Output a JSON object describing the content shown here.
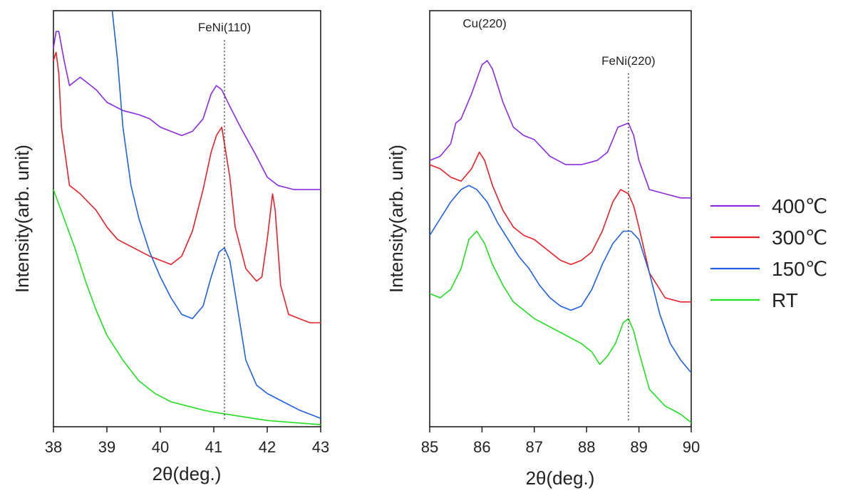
{
  "chart_data": [
    {
      "type": "line",
      "xlabel": "2θ(deg.)",
      "ylabel": "Intensity(arb. unit)",
      "xlim": [
        38,
        43
      ],
      "ylim": [
        0,
        100
      ],
      "y_ticks_shown": false,
      "xticks": [
        "38",
        "39",
        "40",
        "41",
        "42",
        "43"
      ],
      "annotations": [
        {
          "text": "FeNi(110)",
          "x": 41.2,
          "y": 95,
          "reference_line_x": 41.2
        }
      ],
      "series": [
        {
          "name": "400℃",
          "color": "#8a2be2",
          "x": [
            38.0,
            38.05,
            38.1,
            38.2,
            38.3,
            38.5,
            38.8,
            39.0,
            39.3,
            39.6,
            39.8,
            40.0,
            40.2,
            40.4,
            40.6,
            40.8,
            40.95,
            41.05,
            41.15,
            41.3,
            41.5,
            41.8,
            42.0,
            42.2,
            42.5,
            42.8,
            43.0
          ],
          "y": [
            91,
            95,
            95,
            88,
            82,
            84,
            81,
            78,
            76,
            75,
            74,
            72,
            71,
            70,
            71,
            74,
            80,
            82,
            81,
            77,
            72,
            65,
            60,
            58,
            57,
            57,
            57
          ]
        },
        {
          "name": "300℃",
          "color": "#e8202a",
          "x": [
            38.0,
            38.05,
            38.1,
            38.15,
            38.3,
            38.5,
            38.8,
            39.0,
            39.2,
            39.5,
            39.8,
            40.0,
            40.2,
            40.4,
            40.6,
            40.8,
            40.95,
            41.05,
            41.15,
            41.2,
            41.3,
            41.4,
            41.6,
            41.8,
            41.9,
            42.0,
            42.1,
            42.15,
            42.25,
            42.4,
            42.6,
            42.8,
            43.0
          ],
          "y": [
            88,
            90,
            85,
            72,
            58,
            56,
            52,
            48,
            45,
            43,
            41,
            40,
            39,
            41,
            47,
            57,
            66,
            70,
            72,
            68,
            60,
            48,
            38,
            35,
            36,
            45,
            56,
            52,
            34,
            27,
            26,
            25,
            25
          ]
        },
        {
          "name": "150℃",
          "color": "#2060e0",
          "x": [
            39.1,
            39.2,
            39.3,
            39.45,
            39.6,
            39.8,
            40.0,
            40.2,
            40.4,
            40.6,
            40.8,
            40.95,
            41.1,
            41.2,
            41.3,
            41.45,
            41.6,
            41.8,
            42.0,
            42.3,
            42.6,
            43.0
          ],
          "y": [
            100,
            88,
            72,
            58,
            50,
            42,
            36,
            31,
            27,
            26,
            29,
            36,
            42,
            43,
            40,
            28,
            16,
            10,
            8,
            6,
            4,
            2
          ]
        },
        {
          "name": "RT",
          "color": "#22dd22",
          "x": [
            38.0,
            38.2,
            38.4,
            38.6,
            38.8,
            39.0,
            39.3,
            39.6,
            39.9,
            40.2,
            40.5,
            40.8,
            41.0,
            41.5,
            42.0,
            42.5,
            43.0
          ],
          "y": [
            57,
            50,
            43,
            35,
            28,
            22,
            16,
            11,
            8,
            6,
            5,
            4,
            3.5,
            2.5,
            1.5,
            1,
            0.5
          ]
        }
      ]
    },
    {
      "type": "line",
      "xlabel": "2θ(deg.)",
      "ylabel": "Intensity(arb. unit)",
      "xlim": [
        85,
        90
      ],
      "ylim": [
        0,
        100
      ],
      "y_ticks_shown": false,
      "xticks": [
        "85",
        "86",
        "87",
        "88",
        "89",
        "90"
      ],
      "annotations": [
        {
          "text": "Cu(220)",
          "x": 86.05,
          "y": 96
        },
        {
          "text": "FeNi(220)",
          "x": 88.8,
          "y": 87,
          "reference_line_x": 88.8
        }
      ],
      "series": [
        {
          "name": "400℃",
          "color": "#8a2be2",
          "x": [
            85.0,
            85.2,
            85.4,
            85.5,
            85.6,
            85.8,
            86.0,
            86.1,
            86.2,
            86.4,
            86.6,
            86.8,
            87.0,
            87.3,
            87.6,
            87.9,
            88.2,
            88.4,
            88.6,
            88.8,
            88.9,
            89.0,
            89.2,
            89.5,
            89.8,
            90.0
          ],
          "y": [
            64,
            65,
            68,
            73,
            74,
            80,
            87,
            88,
            86,
            78,
            72,
            70,
            69,
            65,
            63,
            63,
            64,
            66,
            72,
            73,
            70,
            64,
            57,
            56,
            55,
            55
          ]
        },
        {
          "name": "300℃",
          "color": "#e8202a",
          "x": [
            85.0,
            85.2,
            85.4,
            85.6,
            85.8,
            85.95,
            86.05,
            86.2,
            86.4,
            86.6,
            86.8,
            87.0,
            87.3,
            87.5,
            87.7,
            87.9,
            88.1,
            88.3,
            88.5,
            88.65,
            88.8,
            88.9,
            89.0,
            89.2,
            89.5,
            89.8,
            90.0
          ],
          "y": [
            63,
            62,
            60,
            59,
            62,
            66,
            64,
            58,
            52,
            48,
            46,
            45,
            42,
            40,
            39,
            40,
            42,
            47,
            54,
            57,
            56,
            53,
            48,
            37,
            31,
            30,
            30
          ]
        },
        {
          "name": "150℃",
          "color": "#2060e0",
          "x": [
            85.0,
            85.2,
            85.4,
            85.6,
            85.75,
            85.9,
            86.1,
            86.3,
            86.5,
            86.7,
            86.9,
            87.1,
            87.3,
            87.5,
            87.7,
            87.9,
            88.1,
            88.3,
            88.5,
            88.7,
            88.85,
            89.0,
            89.2,
            89.4,
            89.6,
            89.8,
            90.0
          ],
          "y": [
            46,
            50,
            54,
            57,
            58,
            57,
            54,
            49,
            45,
            41,
            38,
            34,
            31,
            29,
            28,
            29,
            33,
            39,
            44,
            47,
            47,
            45,
            37,
            27,
            20,
            16,
            13
          ]
        },
        {
          "name": "RT",
          "color": "#22dd22",
          "x": [
            85.0,
            85.2,
            85.4,
            85.6,
            85.75,
            85.9,
            86.05,
            86.2,
            86.4,
            86.6,
            86.8,
            87.0,
            87.3,
            87.6,
            87.9,
            88.1,
            88.25,
            88.4,
            88.55,
            88.7,
            88.8,
            88.9,
            89.0,
            89.2,
            89.5,
            89.8,
            90.0
          ],
          "y": [
            32,
            31,
            33,
            38,
            45,
            47,
            44,
            39,
            34,
            30,
            28,
            26,
            24,
            22,
            20,
            18,
            15,
            17,
            20,
            25,
            26,
            23,
            18,
            9,
            5,
            3,
            1
          ]
        }
      ]
    }
  ],
  "legend": {
    "placement": "right",
    "items": [
      {
        "label": "400℃",
        "color": "#8a2be2"
      },
      {
        "label": "300℃",
        "color": "#e8202a"
      },
      {
        "label": "150℃",
        "color": "#2060e0"
      },
      {
        "label": "RT",
        "color": "#22dd22"
      }
    ]
  }
}
